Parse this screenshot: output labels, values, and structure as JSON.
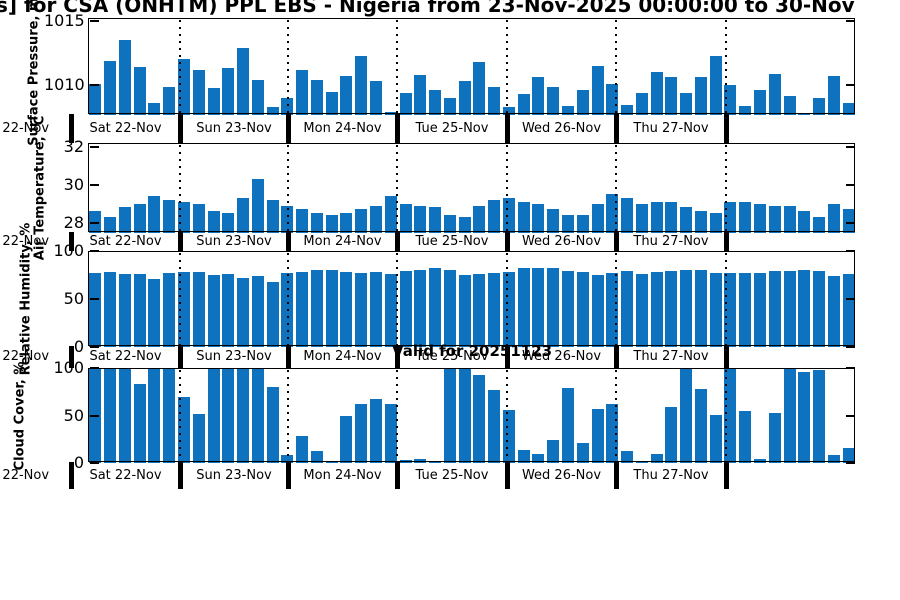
{
  "title": {
    "visible_text": "s] for CSA (ONHTM) PPL EBS  - Nigeria from 23-Nov-2025 00:00:00 to 30-Nov"
  },
  "valid_label": "Valid for 20251123",
  "colors": {
    "bar": "#0f72bf",
    "axis": "#000000"
  },
  "x_axis": {
    "day_labels": [
      "Sat 22-Nov",
      "Sun 23-Nov",
      "Mon 24-Nov",
      "Tue 25-Nov",
      "Wed 26-Nov",
      "Thu 27-Nov"
    ],
    "clipped_left_label": "Sat 22-Nov"
  },
  "chart_data": [
    {
      "type": "bar",
      "name": "surface-pressure",
      "ylabel": "Surface Pressure, mb",
      "yticks": [
        1015,
        1010
      ],
      "ylim": [
        1007.7,
        1015.2
      ],
      "values": [
        1010.1,
        1011.9,
        1013.5,
        1011.4,
        1008.6,
        1009.9,
        1012.0,
        1011.2,
        1009.8,
        1011.3,
        1012.9,
        1010.4,
        1008.3,
        1009.0,
        1011.2,
        1010.4,
        1009.5,
        1010.7,
        1012.3,
        1010.3,
        1007.9,
        1009.4,
        1010.8,
        1009.6,
        1009.0,
        1010.3,
        1011.8,
        1009.9,
        1008.3,
        1009.3,
        1010.6,
        1009.9,
        1008.4,
        1009.6,
        1011.5,
        1010.1,
        1008.5,
        1009.4,
        1011.0,
        1010.6,
        1009.4,
        1010.6,
        1012.3,
        1010.0,
        1008.4,
        1009.6,
        1010.9,
        1009.2,
        1007.8,
        1009.0,
        1010.7,
        1008.6
      ]
    },
    {
      "type": "bar",
      "name": "air-temperature",
      "ylabel": "Air Temperature, °C",
      "yticks": [
        32,
        30,
        28
      ],
      "ylim": [
        27.45,
        32.2
      ],
      "values": [
        28.6,
        28.3,
        28.8,
        29.0,
        29.4,
        29.2,
        29.1,
        29.0,
        28.6,
        28.5,
        29.3,
        30.3,
        29.2,
        28.9,
        28.7,
        28.5,
        28.4,
        28.5,
        28.7,
        28.9,
        29.4,
        29.0,
        28.9,
        28.8,
        28.4,
        28.3,
        28.9,
        29.2,
        29.3,
        29.1,
        29.0,
        28.7,
        28.4,
        28.4,
        29.0,
        29.5,
        29.3,
        29.0,
        29.1,
        29.1,
        28.8,
        28.6,
        28.5,
        29.1,
        29.1,
        29.0,
        28.9,
        28.9,
        28.6,
        28.3,
        29.0,
        28.7
      ]
    },
    {
      "type": "bar",
      "name": "relative-humidity",
      "ylabel": "Relative Humidity, %",
      "yticks": [
        100,
        50,
        0
      ],
      "ylim": [
        0,
        100
      ],
      "values": [
        77,
        78,
        76,
        76,
        71,
        77,
        78,
        78,
        75,
        76,
        72,
        74,
        68,
        77,
        78,
        80,
        80,
        78,
        77,
        78,
        76,
        79,
        80,
        82,
        80,
        75,
        76,
        77,
        78,
        82,
        82,
        82,
        79,
        78,
        75,
        77,
        79,
        76,
        78,
        79,
        80,
        80,
        77,
        77,
        77,
        77,
        79,
        79,
        80,
        79,
        74,
        76
      ]
    },
    {
      "type": "bar",
      "name": "cloud-cover",
      "ylabel": "Cloud Cover, %",
      "yticks": [
        100,
        50,
        0
      ],
      "ylim": [
        0,
        100
      ],
      "values": [
        100,
        100,
        100,
        83,
        100,
        100,
        70,
        52,
        100,
        100,
        100,
        100,
        80,
        8,
        28,
        13,
        2,
        50,
        62,
        67,
        62,
        3,
        4,
        1,
        100,
        100,
        93,
        77,
        56,
        14,
        9,
        24,
        79,
        21,
        57,
        62,
        13,
        2,
        9,
        59,
        100,
        78,
        51,
        100,
        55,
        4,
        53,
        100,
        96,
        98,
        8,
        16
      ]
    }
  ]
}
